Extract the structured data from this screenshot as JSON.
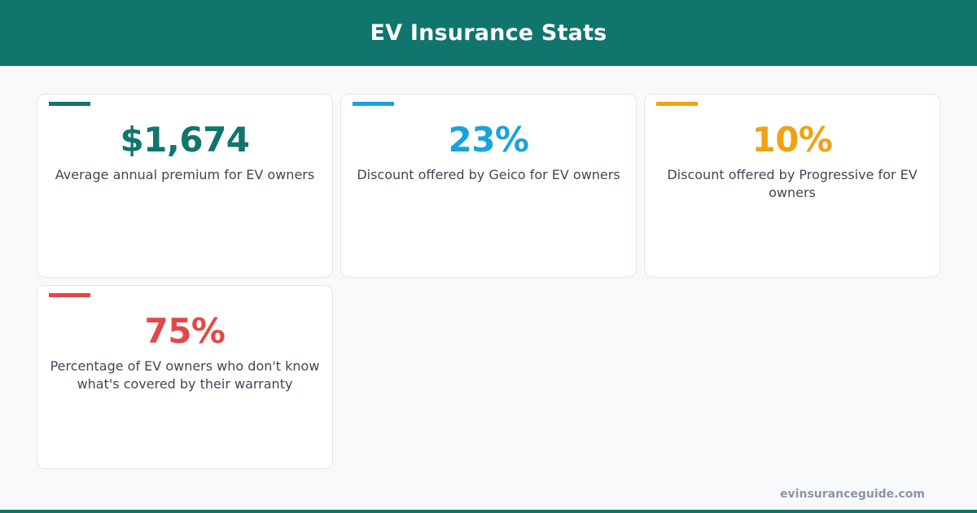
{
  "header": {
    "title": "EV Insurance Stats"
  },
  "stats": [
    {
      "value": "$1,674",
      "label": "Average annual premium for EV owners",
      "color": "#10756d"
    },
    {
      "value": "23%",
      "label": "Discount offered by Geico for EV owners",
      "color": "#1aa3db"
    },
    {
      "value": "10%",
      "label": "Discount offered by Progressive for EV owners",
      "color": "#efa214"
    },
    {
      "value": "75%",
      "label": "Percentage of EV owners who don't know what's covered by their warranty",
      "color": "#e34848"
    }
  ],
  "footer": {
    "site": "evinsuranceguide.com"
  }
}
